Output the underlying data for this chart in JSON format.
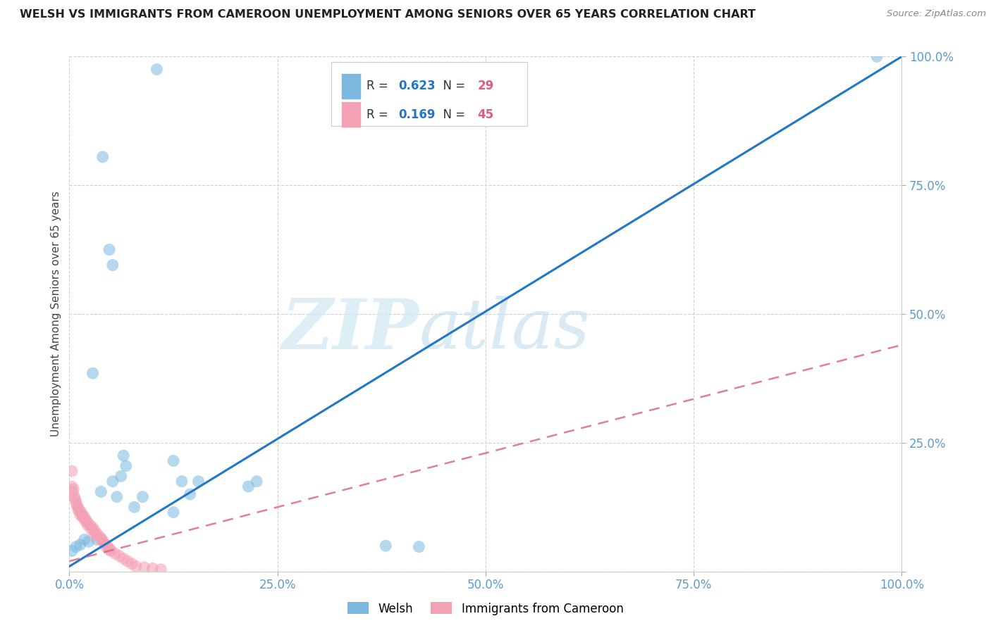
{
  "title": "WELSH VS IMMIGRANTS FROM CAMEROON UNEMPLOYMENT AMONG SENIORS OVER 65 YEARS CORRELATION CHART",
  "source": "Source: ZipAtlas.com",
  "ylabel": "Unemployment Among Seniors over 65 years",
  "xlim": [
    0,
    1
  ],
  "ylim": [
    0,
    1
  ],
  "x_ticks": [
    0,
    0.25,
    0.5,
    0.75,
    1.0
  ],
  "y_ticks": [
    0,
    0.25,
    0.5,
    0.75,
    1.0
  ],
  "x_tick_labels": [
    "0.0%",
    "25.0%",
    "50.0%",
    "75.0%",
    "100.0%"
  ],
  "y_tick_labels": [
    "",
    "25.0%",
    "50.0%",
    "75.0%",
    "100.0%"
  ],
  "welsh_color": "#7bb8e0",
  "cameroon_color": "#f4a0b5",
  "welsh_line_color": "#2176c7",
  "cameroon_line_color": "#d9607a",
  "welsh_R": 0.623,
  "welsh_N": 29,
  "cameroon_R": 0.169,
  "cameroon_N": 45,
  "legend_val_color": "#2176c7",
  "legend_n_color": "#d9607a",
  "watermark_zip": "ZIP",
  "watermark_atlas": "atlas",
  "welsh_scatter_x": [
    0.105,
    0.04,
    0.048,
    0.052,
    0.028,
    0.065,
    0.068,
    0.062,
    0.052,
    0.038,
    0.057,
    0.088,
    0.078,
    0.125,
    0.135,
    0.145,
    0.155,
    0.125,
    0.215,
    0.225,
    0.003,
    0.008,
    0.018,
    0.013,
    0.023,
    0.033,
    0.97,
    0.42,
    0.38
  ],
  "welsh_scatter_y": [
    0.975,
    0.805,
    0.625,
    0.595,
    0.385,
    0.225,
    0.205,
    0.185,
    0.175,
    0.155,
    0.145,
    0.145,
    0.125,
    0.215,
    0.175,
    0.15,
    0.175,
    0.115,
    0.165,
    0.175,
    0.04,
    0.048,
    0.062,
    0.052,
    0.058,
    0.062,
    1.0,
    0.048,
    0.05
  ],
  "cameroon_scatter_x": [
    0.003,
    0.005,
    0.006,
    0.008,
    0.01,
    0.012,
    0.014,
    0.016,
    0.018,
    0.02,
    0.022,
    0.025,
    0.028,
    0.03,
    0.032,
    0.035,
    0.038,
    0.04,
    0.042,
    0.045,
    0.048,
    0.05,
    0.055,
    0.06,
    0.065,
    0.07,
    0.075,
    0.08,
    0.09,
    0.1,
    0.11,
    0.003,
    0.004,
    0.007,
    0.009,
    0.011,
    0.013,
    0.016,
    0.019,
    0.022,
    0.026,
    0.03,
    0.038,
    0.043,
    0.048
  ],
  "cameroon_scatter_y": [
    0.195,
    0.16,
    0.145,
    0.135,
    0.125,
    0.12,
    0.115,
    0.11,
    0.105,
    0.1,
    0.095,
    0.09,
    0.085,
    0.08,
    0.075,
    0.07,
    0.065,
    0.06,
    0.055,
    0.05,
    0.045,
    0.04,
    0.035,
    0.03,
    0.025,
    0.02,
    0.015,
    0.01,
    0.008,
    0.006,
    0.004,
    0.165,
    0.155,
    0.14,
    0.128,
    0.118,
    0.11,
    0.105,
    0.098,
    0.09,
    0.082,
    0.072,
    0.062,
    0.05,
    0.042
  ],
  "welsh_line_x": [
    0.0,
    1.0
  ],
  "welsh_line_y": [
    0.01,
    1.0
  ],
  "cameroon_line_x": [
    0.0,
    1.0
  ],
  "cameroon_line_y": [
    0.02,
    0.44
  ],
  "background_color": "#ffffff",
  "grid_color": "#d0d0d0",
  "axis_color": "#5b9bd5",
  "title_color": "#222222"
}
